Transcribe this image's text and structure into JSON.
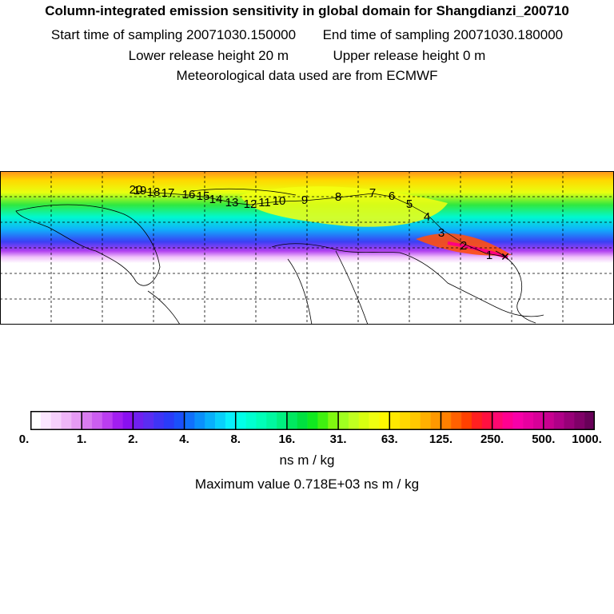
{
  "title": "Column-integrated emission sensitivity in global domain for Shangdianzi_200710",
  "start_label": "Start time of sampling 20071030.150000",
  "end_label": "End time of sampling 20071030.180000",
  "lower_label": "Lower release height   20 m",
  "upper_label": "Upper release height    0 m",
  "met_label": "Meteorological data used are from ECMWF",
  "trajectory_labels": [
    "1",
    "2",
    "3",
    "4",
    "5",
    "6",
    "7",
    "8",
    "9",
    "10",
    "11",
    "12",
    "13",
    "14",
    "15",
    "16",
    "17",
    "18",
    "19",
    "20"
  ],
  "colorbar": {
    "ticks": [
      "0.",
      "1.",
      "2.",
      "4.",
      "8.",
      "16.",
      "31.",
      "63.",
      "125.",
      "250.",
      "500.",
      "1000."
    ],
    "colors": [
      "#ffffff",
      "#fbe6ff",
      "#f5d0fb",
      "#eeb6f7",
      "#e69bf4",
      "#d97cf0",
      "#cc5ef0",
      "#bb3df0",
      "#a21ef0",
      "#8a10f0",
      "#7020f0",
      "#5a2df2",
      "#3f34f5",
      "#2a3cf8",
      "#1a50fb",
      "#1070fb",
      "#0a90fb",
      "#08b0fb",
      "#08d0fb",
      "#08f0fb",
      "#00ffe8",
      "#00ffd0",
      "#00ffb8",
      "#00f8a0",
      "#00f080",
      "#00e860",
      "#00e040",
      "#10e820",
      "#40f010",
      "#80f810",
      "#a0ff20",
      "#c0ff20",
      "#d8ff10",
      "#f0ff10",
      "#fff800",
      "#ffe800",
      "#ffd800",
      "#ffc800",
      "#ffb000",
      "#ff9800",
      "#ff8000",
      "#ff6000",
      "#ff4000",
      "#ff2020",
      "#ff1040",
      "#ff0870",
      "#ff0090",
      "#f800a8",
      "#e800a0",
      "#d80098",
      "#c80090",
      "#b00088",
      "#980078",
      "#800068",
      "#680058"
    ],
    "unit": "ns m / kg"
  },
  "max_label": "Maximum value  0.718E+03 ns m / kg"
}
